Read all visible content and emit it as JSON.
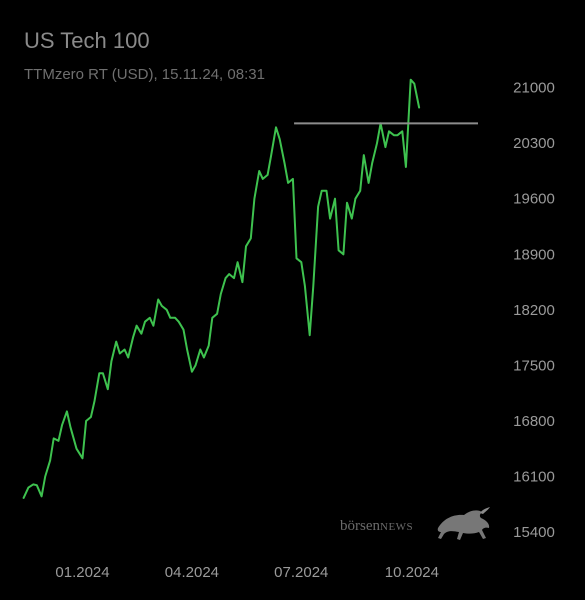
{
  "chart_data": {
    "type": "line",
    "title": "US Tech 100",
    "subtitle": "TTMzero RT (USD), 15.11.24, 08:31",
    "line_color": "#3ec24f",
    "resistance_color": "#8c8c8c",
    "background": "#000000",
    "ylim": [
      15300,
      21600
    ],
    "xlim": [
      "2023-11-10",
      "2024-11-25"
    ],
    "y_ticks": [
      21000,
      20300,
      19600,
      18900,
      18200,
      17500,
      16800,
      16100,
      15400
    ],
    "x_ticks": [
      {
        "date": "2024-01-01",
        "label": "01.2024"
      },
      {
        "date": "2024-04-01",
        "label": "04.2024"
      },
      {
        "date": "2024-07-01",
        "label": "07.2024"
      },
      {
        "date": "2024-10-01",
        "label": "10.2024"
      }
    ],
    "resistance_level": 20550,
    "resistance_range": [
      "2024-06-25",
      "2024-11-25"
    ],
    "series": [
      {
        "points": [
          [
            "2023-11-13",
            15830
          ],
          [
            "2023-11-17",
            15960
          ],
          [
            "2023-11-21",
            16000
          ],
          [
            "2023-11-24",
            15990
          ],
          [
            "2023-11-28",
            15850
          ],
          [
            "2023-12-01",
            16100
          ],
          [
            "2023-12-05",
            16300
          ],
          [
            "2023-12-08",
            16580
          ],
          [
            "2023-12-12",
            16550
          ],
          [
            "2023-12-15",
            16750
          ],
          [
            "2023-12-19",
            16920
          ],
          [
            "2023-12-22",
            16720
          ],
          [
            "2023-12-27",
            16450
          ],
          [
            "2024-01-01",
            16330
          ],
          [
            "2024-01-04",
            16800
          ],
          [
            "2024-01-08",
            16850
          ],
          [
            "2024-01-11",
            17050
          ],
          [
            "2024-01-15",
            17400
          ],
          [
            "2024-01-18",
            17400
          ],
          [
            "2024-01-22",
            17200
          ],
          [
            "2024-01-25",
            17550
          ],
          [
            "2024-01-29",
            17800
          ],
          [
            "2024-02-01",
            17650
          ],
          [
            "2024-02-05",
            17700
          ],
          [
            "2024-02-08",
            17600
          ],
          [
            "2024-02-12",
            17850
          ],
          [
            "2024-02-15",
            18000
          ],
          [
            "2024-02-19",
            17900
          ],
          [
            "2024-02-22",
            18050
          ],
          [
            "2024-02-26",
            18100
          ],
          [
            "2024-02-29",
            18000
          ],
          [
            "2024-03-04",
            18330
          ],
          [
            "2024-03-07",
            18250
          ],
          [
            "2024-03-11",
            18200
          ],
          [
            "2024-03-14",
            18100
          ],
          [
            "2024-03-18",
            18100
          ],
          [
            "2024-03-21",
            18050
          ],
          [
            "2024-03-25",
            17950
          ],
          [
            "2024-03-28",
            17700
          ],
          [
            "2024-04-01",
            17420
          ],
          [
            "2024-04-04",
            17500
          ],
          [
            "2024-04-08",
            17700
          ],
          [
            "2024-04-11",
            17600
          ],
          [
            "2024-04-15",
            17750
          ],
          [
            "2024-04-18",
            18100
          ],
          [
            "2024-04-22",
            18150
          ],
          [
            "2024-04-25",
            18400
          ],
          [
            "2024-04-29",
            18600
          ],
          [
            "2024-05-02",
            18650
          ],
          [
            "2024-05-06",
            18600
          ],
          [
            "2024-05-09",
            18800
          ],
          [
            "2024-05-13",
            18550
          ],
          [
            "2024-05-16",
            19000
          ],
          [
            "2024-05-20",
            19100
          ],
          [
            "2024-05-23",
            19600
          ],
          [
            "2024-05-27",
            19950
          ],
          [
            "2024-05-30",
            19850
          ],
          [
            "2024-06-03",
            19900
          ],
          [
            "2024-06-06",
            20150
          ],
          [
            "2024-06-10",
            20500
          ],
          [
            "2024-06-13",
            20350
          ],
          [
            "2024-06-17",
            20050
          ],
          [
            "2024-06-20",
            19800
          ],
          [
            "2024-06-24",
            19850
          ],
          [
            "2024-06-27",
            18850
          ],
          [
            "2024-07-01",
            18800
          ],
          [
            "2024-07-04",
            18500
          ],
          [
            "2024-07-08",
            17880
          ],
          [
            "2024-07-11",
            18500
          ],
          [
            "2024-07-15",
            19500
          ],
          [
            "2024-07-18",
            19700
          ],
          [
            "2024-07-22",
            19700
          ],
          [
            "2024-07-25",
            19350
          ],
          [
            "2024-07-29",
            19600
          ],
          [
            "2024-08-01",
            18950
          ],
          [
            "2024-08-05",
            18900
          ],
          [
            "2024-08-08",
            19550
          ],
          [
            "2024-08-12",
            19350
          ],
          [
            "2024-08-15",
            19600
          ],
          [
            "2024-08-19",
            19700
          ],
          [
            "2024-08-22",
            20150
          ],
          [
            "2024-08-26",
            19800
          ],
          [
            "2024-08-29",
            20050
          ],
          [
            "2024-09-02",
            20300
          ],
          [
            "2024-09-05",
            20550
          ],
          [
            "2024-09-09",
            20250
          ],
          [
            "2024-09-12",
            20450
          ],
          [
            "2024-09-16",
            20400
          ],
          [
            "2024-09-19",
            20400
          ],
          [
            "2024-09-23",
            20450
          ],
          [
            "2024-09-26",
            20000
          ],
          [
            "2024-09-30",
            21100
          ],
          [
            "2024-10-03",
            21050
          ],
          [
            "2024-10-07",
            20750
          ]
        ]
      }
    ]
  },
  "watermark": {
    "brand_lower": "börsen",
    "brand_upper": "NEWS",
    "icon": "bull-icon"
  }
}
